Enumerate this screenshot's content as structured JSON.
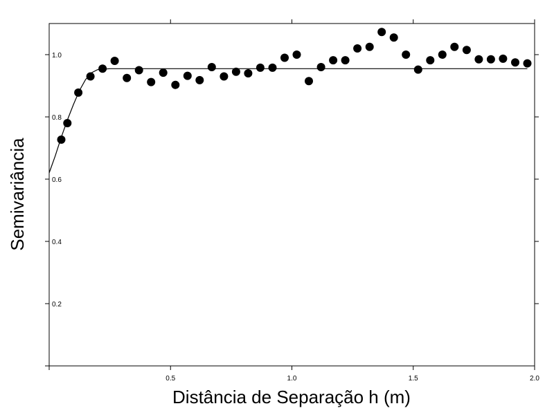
{
  "chart_data": {
    "type": "scatter",
    "title": "",
    "xlabel": "Distância de Separação h (m)",
    "ylabel": "Semivariância",
    "xlim": [
      0.0,
      2.0
    ],
    "ylim": [
      0.0,
      1.1
    ],
    "x_ticks": [
      0.5,
      1.0,
      1.5,
      2.0
    ],
    "x_tick_labels": [
      "0.5",
      "1.0",
      "1.5",
      "2.0"
    ],
    "y_ticks": [
      0.2,
      0.4,
      0.6,
      0.8,
      1.0
    ],
    "y_tick_labels": [
      "0.2",
      "0.4",
      "0.6",
      "0.8",
      "1.0"
    ],
    "grid": false,
    "series": [
      {
        "kind": "points",
        "x": [
          0.05,
          0.075,
          0.12,
          0.17,
          0.22,
          0.27,
          0.32,
          0.37,
          0.42,
          0.47,
          0.52,
          0.57,
          0.62,
          0.67,
          0.72,
          0.77,
          0.82,
          0.87,
          0.92,
          0.97,
          1.02,
          1.07,
          1.12,
          1.17,
          1.22,
          1.27,
          1.32,
          1.37,
          1.42,
          1.47,
          1.52,
          1.57,
          1.62,
          1.67,
          1.72,
          1.77,
          1.82,
          1.87,
          1.92,
          1.97
        ],
        "y": [
          0.727,
          0.78,
          0.878,
          0.93,
          0.955,
          0.98,
          0.925,
          0.95,
          0.912,
          0.942,
          0.903,
          0.932,
          0.918,
          0.96,
          0.93,
          0.945,
          0.94,
          0.958,
          0.958,
          0.99,
          1.0,
          0.915,
          0.96,
          0.982,
          0.982,
          1.02,
          1.025,
          1.073,
          1.055,
          1.0,
          0.952,
          0.982,
          1.0,
          1.025,
          1.015,
          0.985,
          0.985,
          0.987,
          0.975,
          0.972
        ]
      },
      {
        "kind": "fitted-model",
        "x": [
          0.0,
          0.025,
          0.05,
          0.075,
          0.1,
          0.125,
          0.15,
          0.175,
          0.2,
          0.25,
          0.3,
          0.5,
          1.0,
          1.5,
          1.97
        ],
        "y": [
          0.62,
          0.675,
          0.735,
          0.79,
          0.84,
          0.885,
          0.92,
          0.942,
          0.952,
          0.955,
          0.955,
          0.955,
          0.955,
          0.955,
          0.955
        ]
      }
    ]
  }
}
